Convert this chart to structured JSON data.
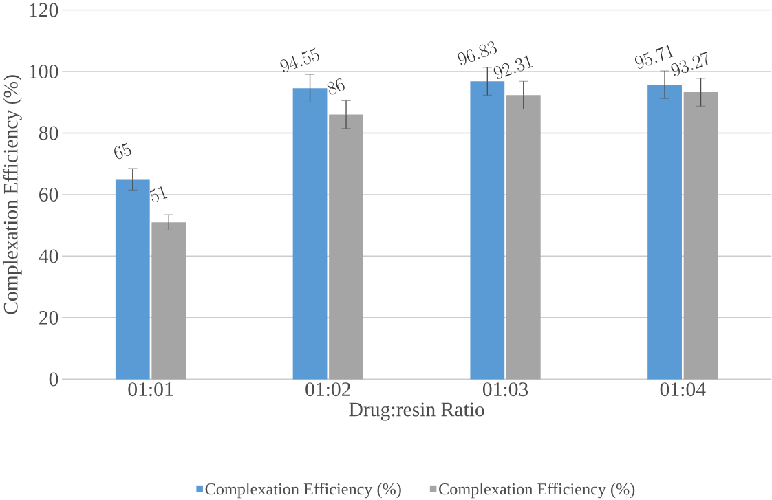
{
  "chart_data": {
    "type": "bar",
    "xlabel": "Drug:resin Ratio",
    "ylabel": "Complexation Efficiency (%)",
    "categories": [
      "01:01",
      "01:02",
      "01:03",
      "01:04"
    ],
    "series": [
      {
        "name": "Complexation Efficiency (%)",
        "color": "#5b9bd5",
        "values": [
          65,
          94.55,
          96.83,
          95.71
        ],
        "errors": [
          3.5,
          4.5,
          4.5,
          4.5
        ]
      },
      {
        "name": "Complexation Efficiency (%)",
        "color": "#a5a5a5",
        "values": [
          51,
          86,
          92.31,
          93.27
        ],
        "errors": [
          2.5,
          4.5,
          4.5,
          4.5
        ]
      }
    ],
    "ylim": [
      0,
      120
    ],
    "yticks": [
      0,
      20,
      40,
      60,
      80,
      100,
      120
    ],
    "grid": "y",
    "legend": "bottom",
    "data_labels": true
  }
}
